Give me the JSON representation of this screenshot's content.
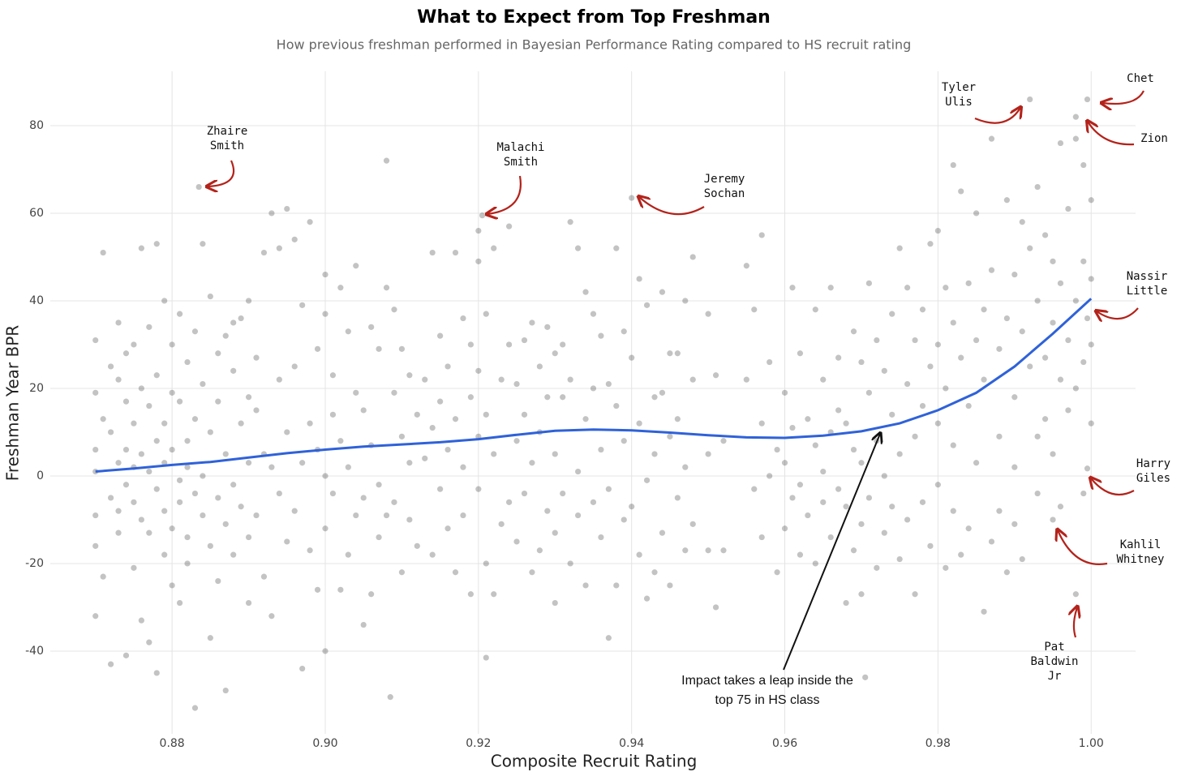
{
  "chart_data": {
    "type": "scatter",
    "title": "What to Expect from Top Freshman",
    "subtitle": "How previous freshman performed in Bayesian Performance Rating compared to HS recruit rating",
    "x_label": "Composite Recruit Rating",
    "y_label": "Freshman Year BPR",
    "xlim": [
      0.8641,
      1.0058
    ],
    "ylim": [
      -58.9,
      92.4
    ],
    "xticks": [
      0.88,
      {
        "value": 0.9,
        "label": "0.90"
      },
      0.92,
      0.94,
      0.96,
      0.98,
      {
        "value": 1.0,
        "label": "1.00"
      }
    ],
    "yticks": [
      -40,
      -20,
      0,
      20,
      40,
      60,
      80
    ],
    "grid": true,
    "series": [
      {
        "type": "scatter",
        "color": "rgba(40,40,40,0.28)",
        "x": [
          0.87,
          0.87,
          0.87,
          0.87,
          0.87,
          0.87,
          0.87,
          0.871,
          0.871,
          0.871,
          0.872,
          0.872,
          0.872,
          0.872,
          0.873,
          0.873,
          0.873,
          0.873,
          0.873,
          0.874,
          0.874,
          0.874,
          0.874,
          0.874,
          0.875,
          0.875,
          0.875,
          0.875,
          0.875,
          0.876,
          0.876,
          0.876,
          0.876,
          0.876,
          0.877,
          0.877,
          0.877,
          0.877,
          0.877,
          0.878,
          0.878,
          0.878,
          0.878,
          0.878,
          0.879,
          0.879,
          0.879,
          0.879,
          0.879,
          0.88,
          0.88,
          0.88,
          0.88,
          0.88,
          0.881,
          0.881,
          0.881,
          0.881,
          0.881,
          0.882,
          0.882,
          0.882,
          0.882,
          0.882,
          0.883,
          0.883,
          0.883,
          0.883,
          0.8835,
          0.884,
          0.884,
          0.884,
          0.884,
          0.885,
          0.885,
          0.885,
          0.885,
          0.886,
          0.886,
          0.886,
          0.886,
          0.887,
          0.887,
          0.887,
          0.887,
          0.888,
          0.888,
          0.888,
          0.888,
          0.889,
          0.889,
          0.889,
          0.89,
          0.89,
          0.89,
          0.89,
          0.89,
          0.891,
          0.891,
          0.891,
          0.892,
          0.892,
          0.892,
          0.893,
          0.893,
          0.893,
          0.894,
          0.894,
          0.894,
          0.895,
          0.895,
          0.895,
          0.896,
          0.896,
          0.896,
          0.897,
          0.897,
          0.897,
          0.898,
          0.898,
          0.898,
          0.899,
          0.899,
          0.899,
          0.9,
          0.9,
          0.9,
          0.9,
          0.9,
          0.901,
          0.901,
          0.901,
          0.902,
          0.902,
          0.902,
          0.903,
          0.903,
          0.903,
          0.904,
          0.904,
          0.904,
          0.905,
          0.905,
          0.905,
          0.906,
          0.906,
          0.906,
          0.907,
          0.907,
          0.907,
          0.908,
          0.908,
          0.908,
          0.9085,
          0.909,
          0.909,
          0.909,
          0.91,
          0.91,
          0.91,
          0.911,
          0.911,
          0.911,
          0.912,
          0.912,
          0.913,
          0.913,
          0.914,
          0.914,
          0.914,
          0.915,
          0.915,
          0.915,
          0.916,
          0.916,
          0.916,
          0.917,
          0.917,
          0.917,
          0.918,
          0.918,
          0.918,
          0.919,
          0.919,
          0.919,
          0.92,
          0.92,
          0.92,
          0.92,
          0.92,
          0.9205,
          0.921,
          0.921,
          0.921,
          0.921,
          0.922,
          0.922,
          0.922,
          0.923,
          0.923,
          0.924,
          0.924,
          0.924,
          0.925,
          0.925,
          0.925,
          0.926,
          0.926,
          0.926,
          0.927,
          0.927,
          0.927,
          0.928,
          0.928,
          0.928,
          0.929,
          0.929,
          0.929,
          0.93,
          0.93,
          0.93,
          0.93,
          0.931,
          0.931,
          0.931,
          0.932,
          0.932,
          0.932,
          0.933,
          0.933,
          0.933,
          0.934,
          0.934,
          0.934,
          0.935,
          0.935,
          0.935,
          0.936,
          0.936,
          0.936,
          0.937,
          0.937,
          0.937,
          0.938,
          0.938,
          0.938,
          0.939,
          0.939,
          0.939,
          0.94,
          0.94,
          0.94,
          0.941,
          0.941,
          0.941,
          0.942,
          0.942,
          0.942,
          0.943,
          0.943,
          0.943,
          0.944,
          0.944,
          0.944,
          0.945,
          0.945,
          0.945,
          0.946,
          0.946,
          0.946,
          0.947,
          0.947,
          0.947,
          0.948,
          0.948,
          0.948,
          0.95,
          0.95,
          0.95,
          0.951,
          0.951,
          0.952,
          0.952,
          0.955,
          0.955,
          0.956,
          0.956,
          0.957,
          0.957,
          0.957,
          0.958,
          0.958,
          0.959,
          0.959,
          0.96,
          0.96,
          0.96,
          0.961,
          0.961,
          0.961,
          0.962,
          0.962,
          0.962,
          0.963,
          0.963,
          0.964,
          0.964,
          0.964,
          0.965,
          0.965,
          0.965,
          0.966,
          0.966,
          0.966,
          0.967,
          0.967,
          0.967,
          0.968,
          0.968,
          0.968,
          0.969,
          0.969,
          0.969,
          0.97,
          0.97,
          0.97,
          0.97,
          0.9705,
          0.971,
          0.971,
          0.971,
          0.972,
          0.972,
          0.972,
          0.973,
          0.973,
          0.973,
          0.974,
          0.974,
          0.974,
          0.975,
          0.975,
          0.975,
          0.976,
          0.976,
          0.976,
          0.977,
          0.977,
          0.977,
          0.978,
          0.978,
          0.978,
          0.979,
          0.979,
          0.979,
          0.98,
          0.98,
          0.98,
          0.98,
          0.981,
          0.981,
          0.981,
          0.982,
          0.982,
          0.982,
          0.982,
          0.983,
          0.983,
          0.983,
          0.984,
          0.984,
          0.984,
          0.985,
          0.985,
          0.985,
          0.986,
          0.986,
          0.986,
          0.987,
          0.987,
          0.987,
          0.988,
          0.988,
          0.988,
          0.989,
          0.989,
          0.989,
          0.99,
          0.99,
          0.99,
          0.99,
          0.991,
          0.991,
          0.991,
          0.992,
          0.992,
          0.992,
          0.993,
          0.993,
          0.993,
          0.993,
          0.994,
          0.994,
          0.994,
          0.995,
          0.995,
          0.995,
          0.995,
          0.996,
          0.996,
          0.996,
          0.996,
          0.997,
          0.997,
          0.997,
          0.998,
          0.998,
          0.998,
          0.998,
          0.998,
          0.999,
          0.999,
          0.999,
          0.999,
          0.9995,
          0.9995,
          0.9995,
          1.0,
          1.0,
          1.0,
          1.0
        ],
        "values": [
          6,
          -9,
          19,
          -16,
          31,
          -32,
          1,
          -23,
          13,
          51,
          -43,
          25,
          -5,
          10,
          3,
          22,
          -13,
          35,
          -8,
          -41,
          17,
          -2,
          28,
          6,
          12,
          -21,
          -6,
          30,
          2,
          -33,
          20,
          -10,
          52,
          5,
          34,
          -38,
          1,
          -13,
          16,
          -45,
          23,
          8,
          -3,
          53,
          40,
          -18,
          -8,
          12,
          3,
          30,
          -25,
          -12,
          6,
          19,
          -29,
          17,
          -6,
          37,
          -1,
          8,
          -20,
          26,
          -14,
          2,
          -53,
          33,
          -4,
          13,
          66,
          53,
          -9,
          21,
          0,
          41,
          -37,
          10,
          -16,
          17,
          -5,
          28,
          -24,
          -49,
          32,
          5,
          -11,
          35,
          -2,
          24,
          -18,
          12,
          -7,
          36,
          -29,
          40,
          3,
          -14,
          18,
          15,
          -9,
          27,
          51,
          -23,
          5,
          60,
          2,
          -32,
          22,
          52,
          -4,
          61,
          10,
          -15,
          54,
          25,
          -8,
          -44,
          39,
          3,
          58,
          -17,
          12,
          -26,
          29,
          6,
          46,
          -40,
          37,
          -12,
          0,
          14,
          -4,
          23,
          43,
          8,
          -26,
          -18,
          33,
          2,
          48,
          -9,
          19,
          -34,
          15,
          -5,
          -27,
          34,
          7,
          29,
          -14,
          -2,
          43,
          72,
          -9,
          -50.5,
          19,
          -6,
          38,
          -22,
          9,
          29,
          23,
          -10,
          3,
          14,
          -16,
          4,
          22,
          51,
          -18,
          11,
          32,
          -3,
          17,
          25,
          -12,
          6,
          51,
          -22,
          13,
          36,
          -9,
          2,
          30,
          -27,
          18,
          56,
          49,
          -3,
          24,
          9,
          59.5,
          -41.5,
          37,
          -20,
          14,
          -27,
          52,
          5,
          22,
          -11,
          57,
          30,
          -6,
          21,
          -15,
          8,
          14,
          -4,
          31,
          35,
          -22,
          3,
          25,
          -17,
          10,
          34,
          -8,
          18,
          -29,
          28,
          5,
          -13,
          18,
          -4,
          30,
          58,
          22,
          -20,
          52,
          1,
          -9,
          42,
          13,
          -25,
          37,
          -6,
          20,
          32,
          -14,
          6,
          -37,
          21,
          -3,
          52,
          -25,
          16,
          33,
          -10,
          8,
          63.5,
          27,
          -7,
          45,
          12,
          -18,
          39,
          -1,
          -28,
          18,
          5,
          -22,
          42,
          -13,
          19,
          -25,
          9,
          28,
          28,
          -5,
          13,
          40,
          -17,
          2,
          50,
          22,
          -11,
          37,
          5,
          -17,
          23,
          -30,
          -17,
          8,
          48,
          22,
          38,
          -3,
          55,
          12,
          -14,
          26,
          0,
          -22,
          6,
          19,
          -12,
          3,
          43,
          -5,
          11,
          -18,
          28,
          -2,
          13,
          -9,
          38,
          -20,
          7,
          22,
          -6,
          1,
          43,
          10,
          -14,
          27,
          -3,
          15,
          12,
          -29,
          -7,
          33,
          6,
          -17,
          26,
          -27,
          -11,
          3,
          -46,
          44,
          19,
          -5,
          8,
          -21,
          31,
          24,
          -13,
          0,
          37,
          14,
          -7,
          52,
          -19,
          5,
          43,
          21,
          -10,
          31,
          -27,
          9,
          38,
          -6,
          16,
          53,
          25,
          -16,
          56,
          12,
          -2,
          30,
          43,
          -21,
          20,
          71,
          35,
          7,
          -8,
          65,
          27,
          -18,
          44,
          16,
          -12,
          60,
          31,
          3,
          38,
          -31,
          22,
          77,
          47,
          -15,
          29,
          9,
          -8,
          63,
          36,
          -22,
          46,
          18,
          -11,
          2,
          58,
          33,
          -19,
          86,
          52,
          25,
          66,
          40,
          9,
          -4,
          55,
          27,
          13,
          49,
          -10,
          35,
          5,
          76,
          44,
          22,
          -7,
          61,
          31,
          15,
          82,
          77,
          40,
          20,
          -27,
          71,
          49,
          26,
          -4,
          86,
          36,
          1.7,
          63,
          45,
          30,
          12
        ]
      },
      {
        "type": "line",
        "color": "#2f62d9",
        "x": [
          0.87,
          0.875,
          0.88,
          0.885,
          0.89,
          0.895,
          0.9,
          0.905,
          0.91,
          0.915,
          0.92,
          0.925,
          0.93,
          0.935,
          0.94,
          0.945,
          0.95,
          0.955,
          0.96,
          0.965,
          0.97,
          0.975,
          0.98,
          0.985,
          0.99,
          0.995,
          1.0
        ],
        "values": [
          1,
          1.7,
          2.5,
          3.2,
          4.2,
          5.2,
          6,
          6.7,
          7.2,
          7.7,
          8.4,
          9.4,
          10.3,
          10.6,
          10.4,
          9.9,
          9.3,
          8.8,
          8.7,
          9.2,
          10.2,
          12,
          15,
          19,
          25,
          32.5,
          40.5
        ]
      }
    ],
    "annotations": [
      {
        "lines": [
          "Zhaire",
          "Smith"
        ]
      },
      {
        "lines": [
          "Malachi",
          "Smith"
        ]
      },
      {
        "lines": [
          "Jeremy",
          "Sochan"
        ]
      },
      {
        "lines": [
          "Tyler",
          "Ulis"
        ]
      },
      {
        "lines": [
          "Chet"
        ]
      },
      {
        "lines": [
          "Zion"
        ]
      },
      {
        "lines": [
          "Nassir",
          "Little"
        ]
      },
      {
        "lines": [
          "Harry",
          "Giles"
        ]
      },
      {
        "lines": [
          "Kahlil",
          "Whitney"
        ]
      },
      {
        "lines": [
          "Pat",
          "Baldwin",
          "Jr"
        ]
      },
      {
        "lines": [
          "Impact takes a leap inside the",
          "top 75 in HS class"
        ]
      }
    ]
  }
}
